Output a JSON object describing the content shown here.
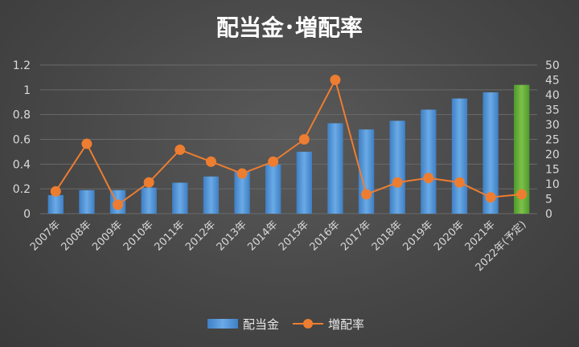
{
  "chart_data": {
    "type": "bar",
    "title": "配当金･増配率",
    "categories": [
      "2007年",
      "2008年",
      "2009年",
      "2010年",
      "2011年",
      "2012年",
      "2013年",
      "2014年",
      "2015年",
      "2016年",
      "2017年",
      "2018年",
      "2019年",
      "2020年",
      "2021年",
      "2022年(予定)"
    ],
    "series": [
      {
        "name": "配当金",
        "type": "bar",
        "axis": "left",
        "values": [
          0.15,
          0.19,
          0.19,
          0.21,
          0.25,
          0.3,
          0.34,
          0.4,
          0.5,
          0.73,
          0.68,
          0.75,
          0.84,
          0.93,
          0.98,
          1.04
        ],
        "color": "#5b9bd5",
        "highlight_last_color": "#70ad47"
      },
      {
        "name": "増配率",
        "type": "line",
        "axis": "right",
        "values": [
          7.5,
          23.5,
          3,
          10.5,
          21.5,
          17.5,
          13.5,
          17.5,
          25,
          45,
          6.5,
          10.5,
          12,
          10.5,
          5.5,
          6.5
        ],
        "color": "#ed7d31"
      }
    ],
    "y_left": {
      "min": 0,
      "max": 1.2,
      "ticks": [
        "0",
        "0.2",
        "0.4",
        "0.6",
        "0.8",
        "1",
        "1.2"
      ]
    },
    "y_right": {
      "min": 0,
      "max": 50,
      "ticks": [
        "0",
        "5",
        "10",
        "15",
        "20",
        "25",
        "30",
        "35",
        "40",
        "45",
        "50"
      ]
    },
    "legend": "bottom",
    "grid": true
  }
}
